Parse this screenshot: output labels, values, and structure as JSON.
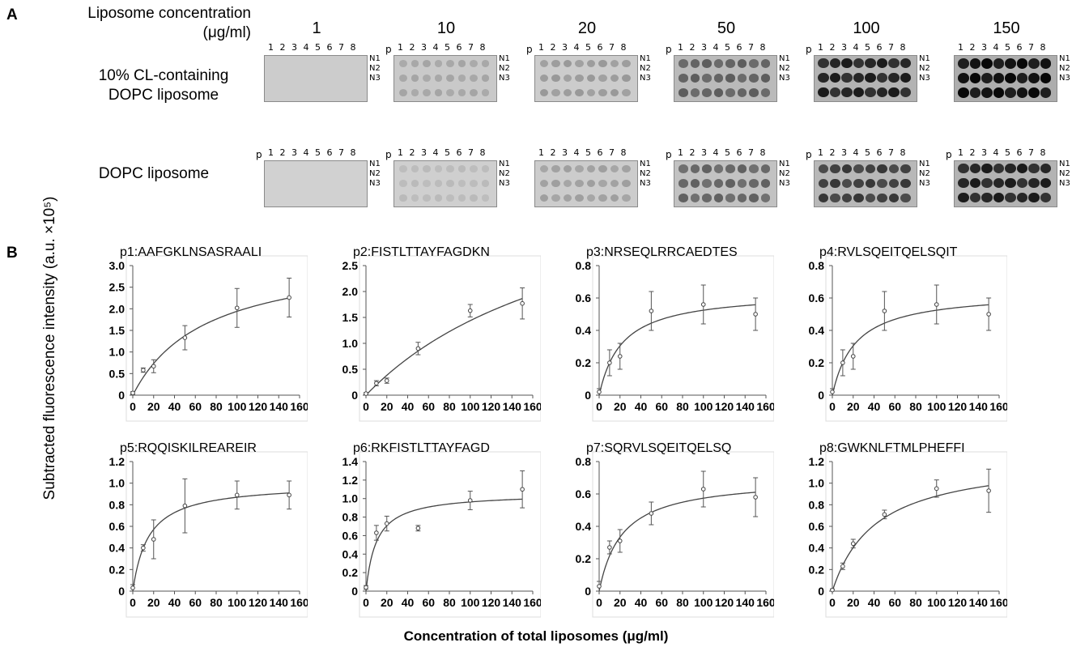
{
  "panelA": {
    "letter": "A",
    "concentration_label_line1": "Liposome concentration",
    "concentration_label_line2": "(μg/ml)",
    "concentrations": [
      "1",
      "10",
      "20",
      "50",
      "100",
      "150"
    ],
    "rows": [
      {
        "label_line1": "10% CL-containing",
        "label_line2": "DOPC liposome"
      },
      {
        "label_line1": "",
        "label_line2": "DOPC liposome"
      }
    ],
    "blot_columns": [
      "1",
      "2",
      "3",
      "4",
      "5",
      "6",
      "7",
      "8"
    ],
    "blot_p_label": "p",
    "blot_rows": [
      "N1",
      "N2",
      "N3"
    ],
    "blot_show_p": [
      [
        false,
        true,
        true,
        true,
        true,
        false
      ],
      [
        true,
        true,
        false,
        true,
        true,
        true
      ]
    ],
    "blot_background_gray": [
      [
        0.8,
        0.79,
        0.8,
        0.73,
        0.7,
        0.68
      ],
      [
        0.82,
        0.81,
        0.8,
        0.76,
        0.72,
        0.7
      ]
    ],
    "blot_spot_darkness": [
      [
        0.0,
        0.18,
        0.25,
        0.5,
        0.85,
        0.97
      ],
      [
        0.0,
        0.1,
        0.22,
        0.5,
        0.7,
        0.85
      ]
    ]
  },
  "panelB": {
    "letter": "B",
    "ylabel": "Subtracted fluorescence intensity (a.u. ×10⁵)",
    "xlabel": "Concentration of total liposomes (μg/ml)"
  },
  "chart_data": [
    {
      "type": "scatter",
      "title": "p1:AAFGKLNSASRAALI",
      "x": [
        0,
        10,
        20,
        50,
        100,
        150
      ],
      "y": [
        0.05,
        0.58,
        0.67,
        1.33,
        2.02,
        2.26
      ],
      "err": [
        0.03,
        0.05,
        0.15,
        0.28,
        0.45,
        0.45
      ],
      "fit": {
        "vmax": 3.3,
        "k": 70
      },
      "xlim": [
        0,
        160
      ],
      "ylim": [
        0,
        3.0
      ],
      "xticks": [
        0,
        20,
        40,
        60,
        80,
        100,
        120,
        140,
        160
      ],
      "yticks": [
        0,
        0.5,
        1.0,
        1.5,
        2.0,
        2.5,
        3.0
      ],
      "ytick_labels": [
        "0",
        "0.5",
        "1.0",
        "1.5",
        "2.0",
        "2.5",
        "3.0"
      ]
    },
    {
      "type": "scatter",
      "title": "p2:FISTLTTAYFAGDKN",
      "x": [
        0,
        10,
        20,
        50,
        100,
        150
      ],
      "y": [
        0.03,
        0.23,
        0.28,
        0.9,
        1.63,
        1.77
      ],
      "err": [
        0.02,
        0.05,
        0.05,
        0.12,
        0.12,
        0.3
      ],
      "fit": {
        "vmax": 4.6,
        "k": 220
      },
      "xlim": [
        0,
        160
      ],
      "ylim": [
        0,
        2.5
      ],
      "xticks": [
        0,
        20,
        40,
        60,
        80,
        100,
        120,
        140,
        160
      ],
      "yticks": [
        0,
        0.5,
        1.0,
        1.5,
        2.0,
        2.5
      ],
      "ytick_labels": [
        "0",
        "0.5",
        "1.0",
        "1.5",
        "2.0",
        "2.5"
      ]
    },
    {
      "type": "scatter",
      "title": "p3:NRSEQLRRCAEDTES",
      "x": [
        0,
        10,
        20,
        50,
        100,
        150
      ],
      "y": [
        0.02,
        0.2,
        0.24,
        0.52,
        0.56,
        0.5
      ],
      "err": [
        0.02,
        0.08,
        0.08,
        0.12,
        0.12,
        0.1
      ],
      "fit": {
        "vmax": 0.64,
        "k": 22
      },
      "xlim": [
        0,
        160
      ],
      "ylim": [
        0,
        0.8
      ],
      "xticks": [
        0,
        20,
        40,
        60,
        80,
        100,
        120,
        140,
        160
      ],
      "yticks": [
        0,
        0.2,
        0.4,
        0.6,
        0.8
      ],
      "ytick_labels": [
        "0",
        "0.2",
        "0.4",
        "0.6",
        "0.8"
      ]
    },
    {
      "type": "scatter",
      "title": "p4:RVLSQEITQELSQIT",
      "x": [
        0,
        10,
        20,
        50,
        100,
        150
      ],
      "y": [
        0.02,
        0.2,
        0.24,
        0.52,
        0.56,
        0.5
      ],
      "err": [
        0.02,
        0.08,
        0.08,
        0.12,
        0.12,
        0.1
      ],
      "fit": {
        "vmax": 0.64,
        "k": 22
      },
      "xlim": [
        0,
        160
      ],
      "ylim": [
        0,
        0.8
      ],
      "xticks": [
        0,
        20,
        40,
        60,
        80,
        100,
        120,
        140,
        160
      ],
      "yticks": [
        0,
        0.2,
        0.4,
        0.6,
        0.8
      ],
      "ytick_labels": [
        "0",
        "0.2",
        "0.4",
        "0.6",
        "0.8"
      ]
    },
    {
      "type": "scatter",
      "title": "p5:RQQISKILREAREIR",
      "x": [
        0,
        10,
        20,
        50,
        100,
        150
      ],
      "y": [
        0.03,
        0.4,
        0.48,
        0.79,
        0.89,
        0.89
      ],
      "err": [
        0.03,
        0.03,
        0.18,
        0.25,
        0.13,
        0.13
      ],
      "fit": {
        "vmax": 1.0,
        "k": 15
      },
      "xlim": [
        0,
        160
      ],
      "ylim": [
        0,
        1.2
      ],
      "xticks": [
        0,
        20,
        40,
        60,
        80,
        100,
        120,
        140,
        160
      ],
      "yticks": [
        0,
        0.2,
        0.4,
        0.6,
        0.8,
        1.0,
        1.2
      ],
      "ytick_labels": [
        "0",
        "0.2",
        "0.4",
        "0.6",
        "0.8",
        "1.0",
        "1.2"
      ]
    },
    {
      "type": "scatter",
      "title": "p6:RKFISTLTTAYFAGD",
      "x": [
        0,
        10,
        20,
        50,
        100,
        150
      ],
      "y": [
        0.04,
        0.63,
        0.73,
        0.68,
        0.98,
        1.1
      ],
      "err": [
        0.02,
        0.08,
        0.08,
        0.03,
        0.1,
        0.2
      ],
      "fit": {
        "vmax": 1.06,
        "k": 10
      },
      "xlim": [
        0,
        160
      ],
      "ylim": [
        0,
        1.4
      ],
      "xticks": [
        0,
        20,
        40,
        60,
        80,
        100,
        120,
        140,
        160
      ],
      "yticks": [
        0,
        0.2,
        0.4,
        0.6,
        0.8,
        1.0,
        1.2,
        1.4
      ],
      "ytick_labels": [
        "0",
        "0.2",
        "0.4",
        "0.6",
        "0.8",
        "1.0",
        "1.2",
        "1.4"
      ]
    },
    {
      "type": "scatter",
      "title": "p7:SQRVLSQEITQELSQ",
      "x": [
        0,
        10,
        20,
        50,
        100,
        150
      ],
      "y": [
        0.03,
        0.27,
        0.31,
        0.48,
        0.63,
        0.58
      ],
      "err": [
        0.03,
        0.04,
        0.07,
        0.07,
        0.11,
        0.12
      ],
      "fit": {
        "vmax": 0.7,
        "k": 22
      },
      "xlim": [
        0,
        160
      ],
      "ylim": [
        0,
        0.8
      ],
      "xticks": [
        0,
        20,
        40,
        60,
        80,
        100,
        120,
        140,
        160
      ],
      "yticks": [
        0,
        0.2,
        0.4,
        0.6,
        0.8
      ],
      "ytick_labels": [
        "0",
        "0.2",
        "0.4",
        "0.6",
        "0.8"
      ]
    },
    {
      "type": "scatter",
      "title": "p8:GWKNLFTMLPHEFFI",
      "x": [
        0,
        10,
        20,
        50,
        100,
        150
      ],
      "y": [
        0.01,
        0.23,
        0.44,
        0.71,
        0.95,
        0.93
      ],
      "err": [
        0.01,
        0.03,
        0.04,
        0.04,
        0.08,
        0.2
      ],
      "fit": {
        "vmax": 1.25,
        "k": 42
      },
      "xlim": [
        0,
        160
      ],
      "ylim": [
        0,
        1.2
      ],
      "xticks": [
        0,
        20,
        40,
        60,
        80,
        100,
        120,
        140,
        160
      ],
      "yticks": [
        0,
        0.2,
        0.4,
        0.6,
        0.8,
        1.0,
        1.2
      ],
      "ytick_labels": [
        "0",
        "0.2",
        "0.4",
        "0.6",
        "0.8",
        "1.0",
        "1.2"
      ]
    }
  ]
}
